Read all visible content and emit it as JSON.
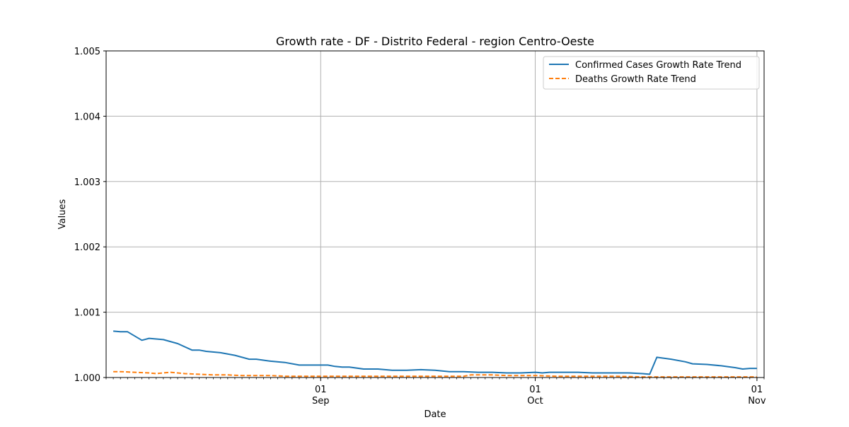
{
  "chart_data": {
    "type": "line",
    "title": "Growth rate - DF - Distrito Federal - region Centro-Oeste",
    "xlabel": "Date",
    "ylabel": "Values",
    "ylim": [
      1.0,
      1.005
    ],
    "yticks": [
      "1.000",
      "1.001",
      "1.002",
      "1.003",
      "1.004",
      "1.005"
    ],
    "xlim": [
      "2020-08-02",
      "2020-11-02"
    ],
    "xticks": [
      {
        "date": "2020-09-01",
        "day": "01",
        "month": "Sep"
      },
      {
        "date": "2020-10-01",
        "day": "01",
        "month": "Oct"
      },
      {
        "date": "2020-11-01",
        "day": "01",
        "month": "Nov"
      }
    ],
    "grid": true,
    "legend_position": "top-right",
    "series": [
      {
        "name": "Confirmed Cases Growth Rate Trend",
        "color": "#1f77b4",
        "style": "solid",
        "points": [
          [
            "2020-08-03",
            1.00071
          ],
          [
            "2020-08-04",
            1.0007
          ],
          [
            "2020-08-05",
            1.0007
          ],
          [
            "2020-08-07",
            1.00057
          ],
          [
            "2020-08-08",
            1.0006
          ],
          [
            "2020-08-10",
            1.00058
          ],
          [
            "2020-08-12",
            1.00052
          ],
          [
            "2020-08-14",
            1.00042
          ],
          [
            "2020-08-15",
            1.00042
          ],
          [
            "2020-08-16",
            1.0004
          ],
          [
            "2020-08-18",
            1.00038
          ],
          [
            "2020-08-20",
            1.00034
          ],
          [
            "2020-08-22",
            1.00028
          ],
          [
            "2020-08-23",
            1.00028
          ],
          [
            "2020-08-25",
            1.00025
          ],
          [
            "2020-08-27",
            1.00023
          ],
          [
            "2020-08-29",
            1.00019
          ],
          [
            "2020-08-31",
            1.00019
          ],
          [
            "2020-09-02",
            1.00019
          ],
          [
            "2020-09-03",
            1.00017
          ],
          [
            "2020-09-04",
            1.00016
          ],
          [
            "2020-09-05",
            1.00016
          ],
          [
            "2020-09-07",
            1.00013
          ],
          [
            "2020-09-09",
            1.00013
          ],
          [
            "2020-09-11",
            1.00011
          ],
          [
            "2020-09-13",
            1.00011
          ],
          [
            "2020-09-15",
            1.00012
          ],
          [
            "2020-09-17",
            1.00011
          ],
          [
            "2020-09-19",
            1.00009
          ],
          [
            "2020-09-21",
            1.00009
          ],
          [
            "2020-09-23",
            1.00008
          ],
          [
            "2020-09-25",
            1.00008
          ],
          [
            "2020-09-27",
            1.00007
          ],
          [
            "2020-09-29",
            1.00007
          ],
          [
            "2020-10-01",
            1.00008
          ],
          [
            "2020-10-02",
            1.00007
          ],
          [
            "2020-10-03",
            1.00008
          ],
          [
            "2020-10-05",
            1.00008
          ],
          [
            "2020-10-07",
            1.00008
          ],
          [
            "2020-10-09",
            1.00007
          ],
          [
            "2020-10-11",
            1.00007
          ],
          [
            "2020-10-12",
            1.00007
          ],
          [
            "2020-10-14",
            1.00007
          ],
          [
            "2020-10-16",
            1.00006
          ],
          [
            "2020-10-17",
            1.00005
          ],
          [
            "2020-10-18",
            1.00031
          ],
          [
            "2020-10-20",
            1.00028
          ],
          [
            "2020-10-22",
            1.00024
          ],
          [
            "2020-10-23",
            1.00021
          ],
          [
            "2020-10-25",
            1.0002
          ],
          [
            "2020-10-27",
            1.00018
          ],
          [
            "2020-10-29",
            1.00015
          ],
          [
            "2020-10-30",
            1.00013
          ],
          [
            "2020-10-31",
            1.00014
          ],
          [
            "2020-11-01",
            1.00014
          ]
        ]
      },
      {
        "name": "Deaths Growth Rate Trend",
        "color": "#ff7f0e",
        "style": "dashed",
        "points": [
          [
            "2020-08-03",
            1.00009
          ],
          [
            "2020-08-04",
            1.00009
          ],
          [
            "2020-08-06",
            1.00008
          ],
          [
            "2020-08-08",
            1.00007
          ],
          [
            "2020-08-09",
            1.00006
          ],
          [
            "2020-08-10",
            1.00007
          ],
          [
            "2020-08-11",
            1.00008
          ],
          [
            "2020-08-13",
            1.00006
          ],
          [
            "2020-08-15",
            1.00005
          ],
          [
            "2020-08-17",
            1.00004
          ],
          [
            "2020-08-19",
            1.00004
          ],
          [
            "2020-08-21",
            1.00003
          ],
          [
            "2020-08-23",
            1.00003
          ],
          [
            "2020-08-25",
            1.00003
          ],
          [
            "2020-08-27",
            1.00002
          ],
          [
            "2020-08-29",
            1.00002
          ],
          [
            "2020-08-31",
            1.00002
          ],
          [
            "2020-09-03",
            1.00002
          ],
          [
            "2020-09-06",
            1.00002
          ],
          [
            "2020-09-10",
            1.00002
          ],
          [
            "2020-09-14",
            1.00002
          ],
          [
            "2020-09-18",
            1.00002
          ],
          [
            "2020-09-21",
            1.00002
          ],
          [
            "2020-09-22",
            1.00004
          ],
          [
            "2020-09-25",
            1.00004
          ],
          [
            "2020-09-27",
            1.00003
          ],
          [
            "2020-09-29",
            1.00003
          ],
          [
            "2020-10-01",
            1.00003
          ],
          [
            "2020-10-04",
            1.00002
          ],
          [
            "2020-10-08",
            1.00002
          ],
          [
            "2020-10-12",
            1.00002
          ],
          [
            "2020-10-16",
            1.00001
          ],
          [
            "2020-10-20",
            1.00001
          ],
          [
            "2020-10-24",
            1.00001
          ],
          [
            "2020-10-28",
            1.00001
          ],
          [
            "2020-11-01",
            1.00001
          ]
        ]
      }
    ]
  }
}
